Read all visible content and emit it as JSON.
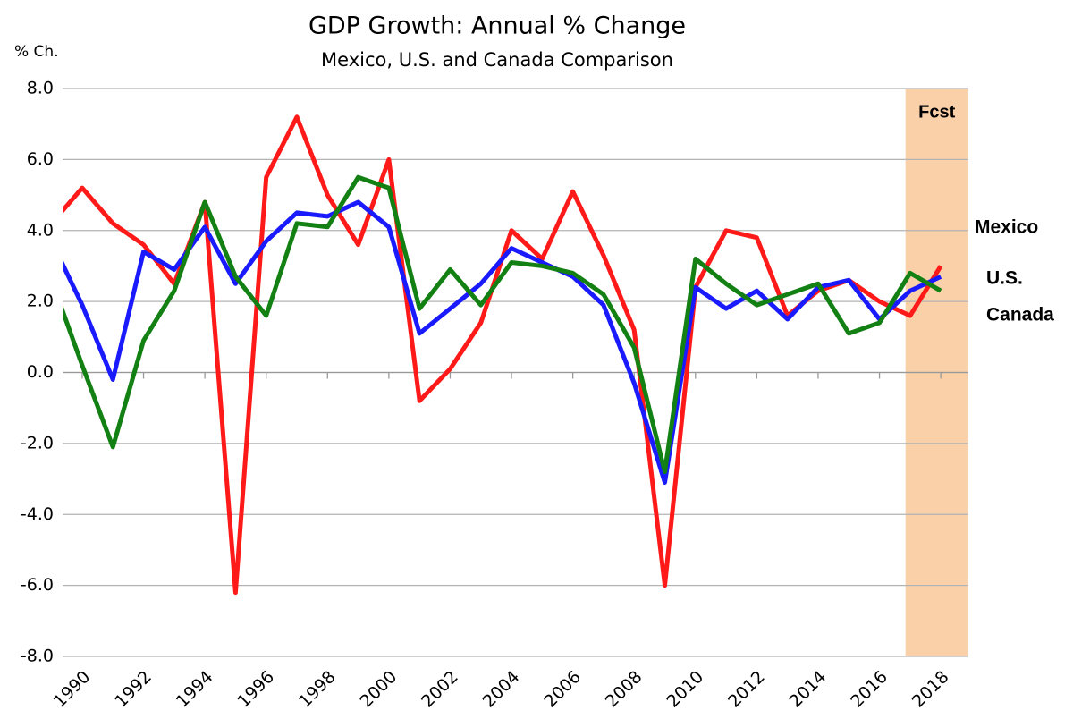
{
  "chart_data": {
    "type": "line",
    "title": "GDP Growth: Annual % Change",
    "subtitle": "Mexico, U.S. and Canada Comparison",
    "y_label": "% Ch.",
    "x": [
      1989,
      1990,
      1991,
      1992,
      1993,
      1994,
      1995,
      1996,
      1997,
      1998,
      1999,
      2000,
      2001,
      2002,
      2003,
      2004,
      2005,
      2006,
      2007,
      2008,
      2009,
      2010,
      2011,
      2012,
      2013,
      2014,
      2015,
      2016,
      2017,
      2018
    ],
    "series": [
      {
        "name": "Mexico",
        "color": "#ff1a1a",
        "values": [
          4.2,
          5.2,
          4.2,
          3.6,
          2.5,
          4.8,
          -6.2,
          5.5,
          7.2,
          5.0,
          3.6,
          6.0,
          -0.8,
          0.1,
          1.4,
          4.0,
          3.2,
          5.1,
          3.3,
          1.2,
          -6.0,
          2.4,
          4.0,
          3.8,
          1.6,
          2.3,
          2.6,
          2.0,
          1.6,
          3.0
        ]
      },
      {
        "name": "U.S.",
        "color": "#1a1aff",
        "values": [
          3.7,
          1.9,
          -0.2,
          3.4,
          2.9,
          4.1,
          2.5,
          3.7,
          4.5,
          4.4,
          4.8,
          4.1,
          1.1,
          1.8,
          2.5,
          3.5,
          3.1,
          2.7,
          1.9,
          -0.3,
          -3.1,
          2.4,
          1.8,
          2.3,
          1.5,
          2.4,
          2.6,
          1.5,
          2.3,
          2.7
        ]
      },
      {
        "name": "Canada",
        "color": "#128012",
        "values": [
          2.6,
          0.2,
          -2.1,
          0.9,
          2.3,
          4.8,
          2.7,
          1.6,
          4.2,
          4.1,
          5.5,
          5.2,
          1.8,
          2.9,
          1.9,
          3.1,
          3.0,
          2.8,
          2.2,
          0.7,
          -2.8,
          3.2,
          2.5,
          1.9,
          2.2,
          2.5,
          1.1,
          1.4,
          2.8,
          2.3
        ]
      }
    ],
    "xlim": [
      1989.36,
      2018.9
    ],
    "xticks": [
      1990,
      1992,
      1994,
      1996,
      1998,
      2000,
      2002,
      2004,
      2006,
      2008,
      2010,
      2012,
      2014,
      2016,
      2018
    ],
    "ylim": [
      -8,
      8
    ],
    "yticks": [
      {
        "value": -8,
        "label": "-8.0"
      },
      {
        "value": -6,
        "label": "-6.0"
      },
      {
        "value": -4,
        "label": "-4.0"
      },
      {
        "value": -2,
        "label": "-2.0"
      },
      {
        "value": 0,
        "label": "0.0"
      },
      {
        "value": 2,
        "label": "2.0"
      },
      {
        "value": 4,
        "label": "4.0"
      },
      {
        "value": 6,
        "label": "6.0"
      },
      {
        "value": 8,
        "label": "8.0"
      }
    ],
    "grid": true,
    "forecast": {
      "label": "Fcst",
      "from": 2016.85,
      "color": "#f9d0a8"
    }
  }
}
